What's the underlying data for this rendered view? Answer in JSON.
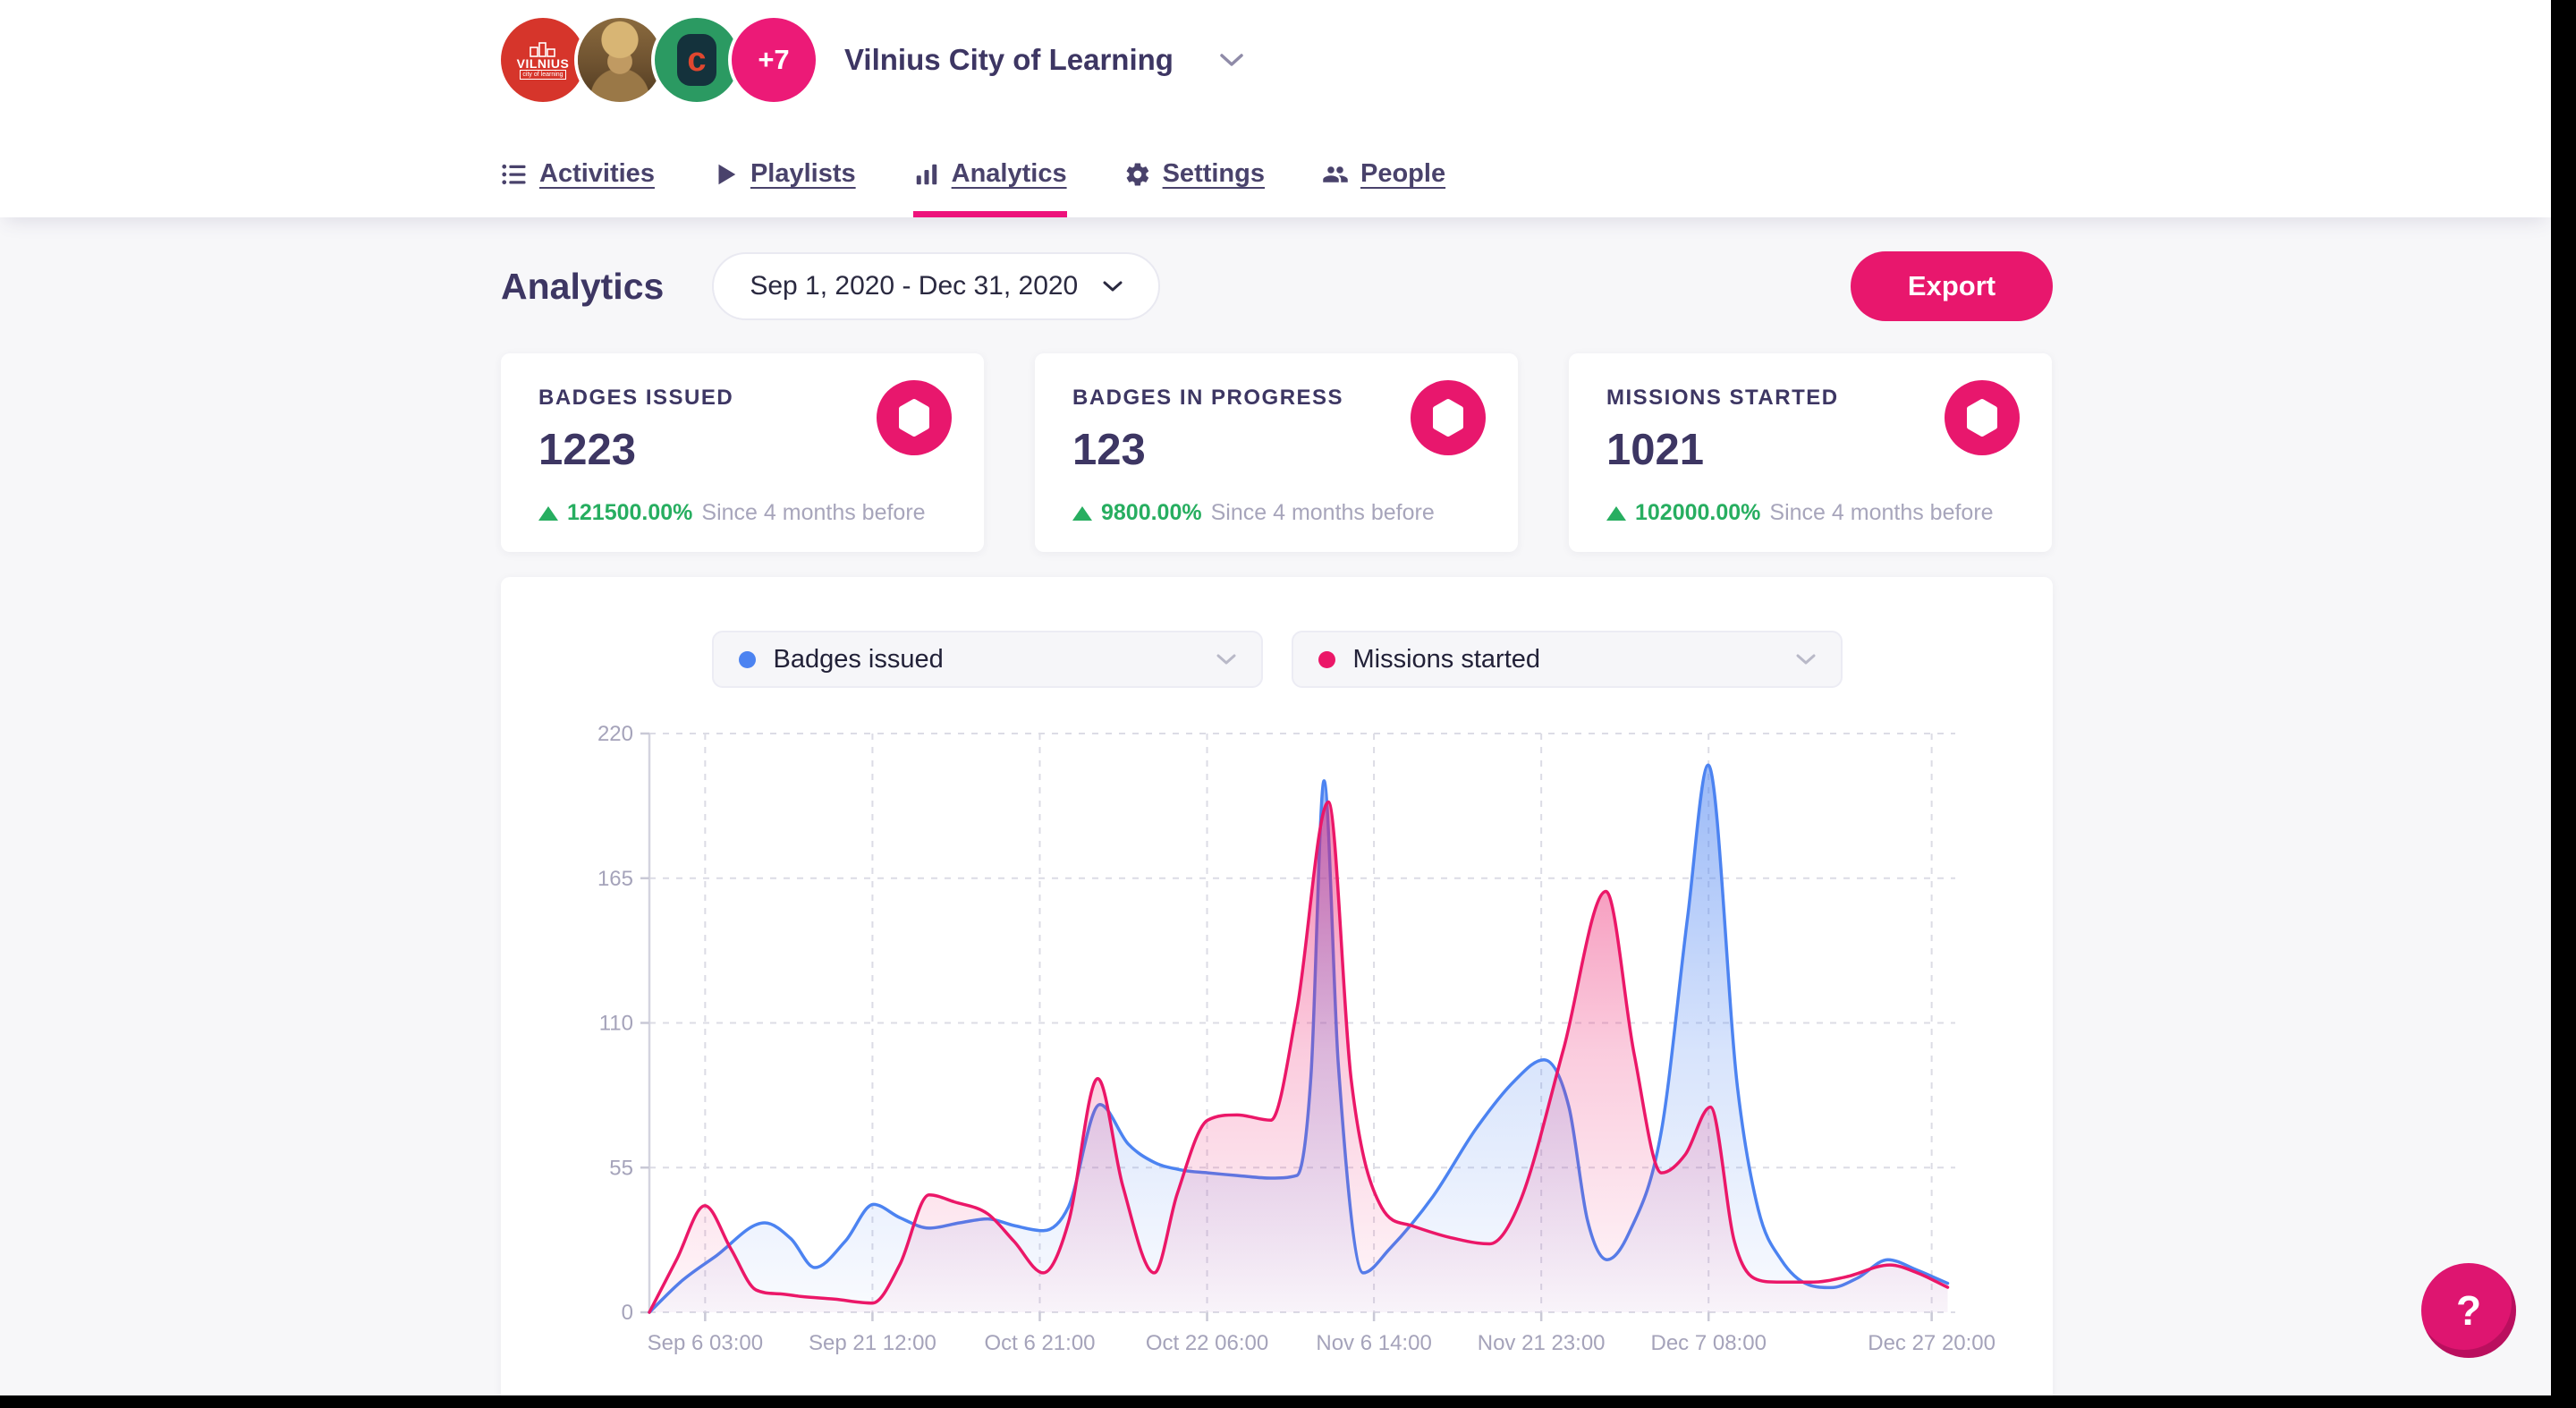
{
  "header": {
    "org_name": "Vilnius City of Learning",
    "avatars": {
      "vilnius_line1": "VILNIUS",
      "vilnius_line2": "city of learning",
      "letter": "c",
      "more_label": "+7"
    },
    "nav": [
      {
        "label": "Activities",
        "icon": "list-icon",
        "active": false
      },
      {
        "label": "Playlists",
        "icon": "play-icon",
        "active": false
      },
      {
        "label": "Analytics",
        "icon": "bar-chart-icon",
        "active": true
      },
      {
        "label": "Settings",
        "icon": "gear-icon",
        "active": false
      },
      {
        "label": "People",
        "icon": "people-icon",
        "active": false
      }
    ]
  },
  "page": {
    "title": "Analytics",
    "date_range": "Sep 1, 2020 - Dec 31, 2020",
    "export_label": "Export",
    "help_label": "?"
  },
  "stats": [
    {
      "label": "BADGES ISSUED",
      "value": "1223",
      "delta": "121500.00%",
      "since": "Since 4 months before"
    },
    {
      "label": "BADGES IN PROGRESS",
      "value": "123",
      "delta": "9800.00%",
      "since": "Since 4 months before"
    },
    {
      "label": "MISSIONS STARTED",
      "value": "1021",
      "delta": "102000.00%",
      "since": "Since 4 months before"
    }
  ],
  "colors": {
    "accent_pink": "#e8176d",
    "series_blue": "#4c83f1",
    "series_pink": "#eb1768",
    "positive_green": "#27ae60"
  },
  "chart_data": {
    "type": "area",
    "x_unit": "days since Sep 1 2020 00:00",
    "xlim": [
      0,
      120
    ],
    "ylim": [
      0,
      220
    ],
    "y_ticks": [
      0,
      55,
      110,
      165,
      220
    ],
    "x_ticks": [
      {
        "day": 5.125,
        "label": "Sep 6 03:00"
      },
      {
        "day": 20.5,
        "label": "Sep 21 12:00"
      },
      {
        "day": 35.875,
        "label": "Oct 6 21:00"
      },
      {
        "day": 51.25,
        "label": "Oct 22 06:00"
      },
      {
        "day": 66.583,
        "label": "Nov 6 14:00"
      },
      {
        "day": 81.958,
        "label": "Nov 21 23:00"
      },
      {
        "day": 97.333,
        "label": "Dec 7 08:00"
      },
      {
        "day": 117.833,
        "label": "Dec 27 20:00"
      }
    ],
    "grid": "dashed",
    "legend_position": "top-center dropdown filters",
    "series": [
      {
        "name": "Badges issued",
        "color": "#4c83f1",
        "points": [
          [
            0,
            0
          ],
          [
            3,
            12
          ],
          [
            6,
            21
          ],
          [
            10.6,
            34
          ],
          [
            13,
            28
          ],
          [
            15.2,
            17
          ],
          [
            18,
            27
          ],
          [
            20.6,
            41
          ],
          [
            23,
            36
          ],
          [
            25.7,
            32
          ],
          [
            28.5,
            34
          ],
          [
            31.1,
            35.5
          ],
          [
            33.5,
            33
          ],
          [
            36.2,
            31
          ],
          [
            38.5,
            40
          ],
          [
            41.4,
            79
          ],
          [
            44,
            64
          ],
          [
            46.4,
            57
          ],
          [
            49,
            54
          ],
          [
            51.3,
            53
          ],
          [
            54,
            52
          ],
          [
            57.1,
            51
          ],
          [
            59.5,
            52
          ],
          [
            60.8,
            90
          ],
          [
            62,
            202
          ],
          [
            63.3,
            95
          ],
          [
            65.6,
            15
          ],
          [
            68,
            24
          ],
          [
            72,
            44
          ],
          [
            76,
            70
          ],
          [
            79.5,
            88
          ],
          [
            82.2,
            96
          ],
          [
            84.5,
            78
          ],
          [
            86.2,
            35
          ],
          [
            88,
            20
          ],
          [
            90,
            30
          ],
          [
            93,
            69
          ],
          [
            95.4,
            150
          ],
          [
            97.3,
            208
          ],
          [
            100,
            85
          ],
          [
            101.9,
            39
          ],
          [
            104,
            20
          ],
          [
            106.5,
            10.5
          ],
          [
            108.6,
            9.4
          ],
          [
            111,
            13
          ],
          [
            113.8,
            20
          ],
          [
            116.5,
            16
          ],
          [
            119.3,
            11
          ]
        ]
      },
      {
        "name": "Missions started",
        "color": "#eb1768",
        "points": [
          [
            0,
            0
          ],
          [
            2.5,
            20
          ],
          [
            5.1,
            40.5
          ],
          [
            7.5,
            24
          ],
          [
            9.8,
            8.5
          ],
          [
            12,
            7
          ],
          [
            14,
            6
          ],
          [
            17,
            5
          ],
          [
            20.5,
            3.5
          ],
          [
            23,
            18
          ],
          [
            25.7,
            44.6
          ],
          [
            28,
            42
          ],
          [
            31.1,
            37.4
          ],
          [
            33.5,
            27
          ],
          [
            36.2,
            15
          ],
          [
            38.5,
            34
          ],
          [
            41.2,
            88.8
          ],
          [
            43.5,
            48
          ],
          [
            46.4,
            15
          ],
          [
            48.5,
            45
          ],
          [
            51.3,
            73
          ],
          [
            54,
            75
          ],
          [
            57.1,
            73
          ],
          [
            59.5,
            115
          ],
          [
            62.4,
            194
          ],
          [
            64.5,
            88
          ],
          [
            67.3,
            39.8
          ],
          [
            70,
            33
          ],
          [
            73.5,
            28.5
          ],
          [
            77.2,
            26
          ],
          [
            80,
            42
          ],
          [
            84,
            100
          ],
          [
            87.9,
            160
          ],
          [
            90.5,
            98
          ],
          [
            93,
            53
          ],
          [
            95.2,
            60
          ],
          [
            97.5,
            78
          ],
          [
            99.7,
            27
          ],
          [
            101.5,
            13
          ],
          [
            103.6,
            11.5
          ],
          [
            107,
            11.5
          ],
          [
            110,
            13.5
          ],
          [
            114,
            18
          ],
          [
            116.5,
            15
          ],
          [
            119.3,
            9.5
          ]
        ]
      }
    ]
  }
}
